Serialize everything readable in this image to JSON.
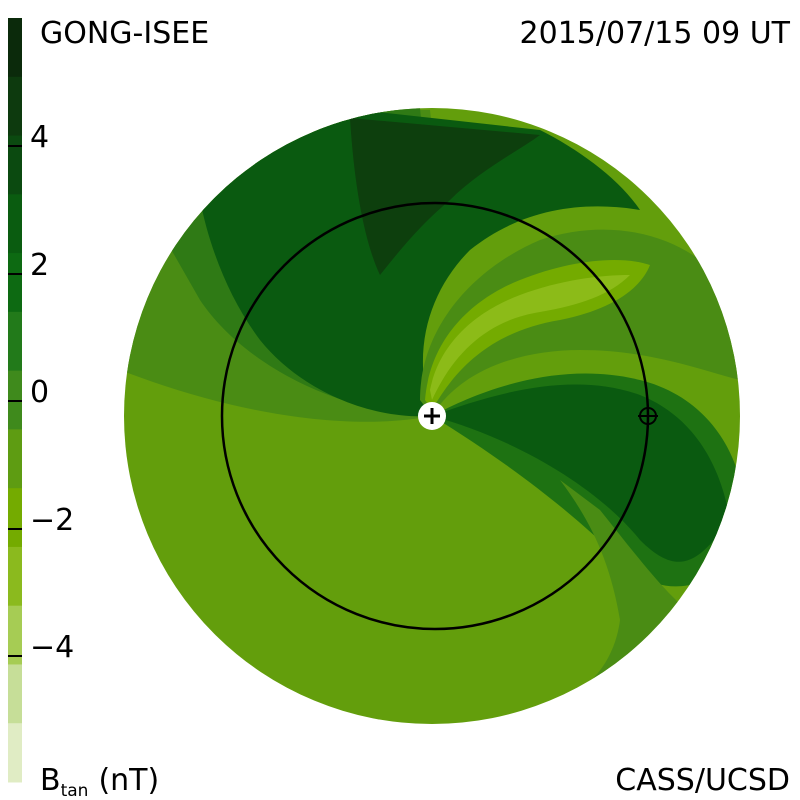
{
  "header": {
    "source": "GONG-ISEE",
    "timestamp": "2015/07/15 09 UT"
  },
  "footer": {
    "quantity": "B",
    "quantity_subscript": "tan",
    "unit": "(nT)",
    "credit": "CASS/UCSD"
  },
  "colorbar": {
    "tick_labels": [
      "4",
      "2",
      "0",
      "−2",
      "−4"
    ],
    "tick_values": [
      4,
      2,
      0,
      -2,
      -4
    ],
    "range": [
      -6,
      6
    ],
    "colors": [
      "#0b2a0b",
      "#0d3a0e",
      "#0b4a10",
      "#0a5c10",
      "#0d6a12",
      "#227a1a",
      "#3f8a1c",
      "#5e9c12",
      "#74ab00",
      "#8bba1e",
      "#a6cc54",
      "#c6de98",
      "#e0ecc4"
    ]
  },
  "map_colors": {
    "very_positive": "#0d3f0d",
    "strong_positive": "#0a5a10",
    "positive": "#1e7212",
    "near_zero": "#4a8c14",
    "weak_negative": "#639e0c",
    "negative": "#74ab00",
    "strong_negative": "#8cbb18",
    "orbit": "#000000",
    "sun_disk": "#ffffff"
  },
  "markers": {
    "sun": "sun-plus-icon",
    "earth": "earth-circle-plus-icon"
  }
}
